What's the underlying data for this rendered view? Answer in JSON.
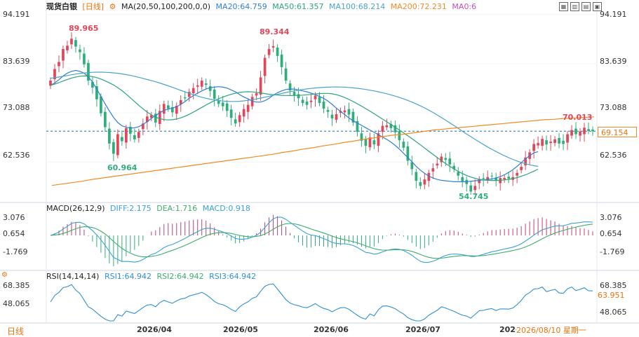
{
  "header": {
    "symbol": "现货白银",
    "period": "[日线]",
    "ma_label": "MA(20,50,100,200,0,0)",
    "ma20": "MA20:64.759",
    "ma50": "MA50:61.357",
    "ma100": "MA100:68.214",
    "ma200": "MA200:72.231",
    "ma0": "MA0:6"
  },
  "macd_header": {
    "label": "MACD(26,12,9)",
    "diff": "DIFF:2.175",
    "dea": "DEA:1.716",
    "macd": "MACD:0.918"
  },
  "rsi_header": {
    "label": "RSI(14,14,14)",
    "rsi1": "RSI1:64.942",
    "rsi2": "RSI2:64.942",
    "rsi3": "RSI3:64.942"
  },
  "price_axis": [
    "94.191",
    "83.639",
    "73.088",
    "62.536"
  ],
  "macd_axis": [
    "3.076",
    "0.654",
    "-1.769"
  ],
  "rsi_axis": [
    "68.385",
    "48.065"
  ],
  "current_price_label": "69.154",
  "current_rsi_label": "63.951",
  "x_axis_labels": [
    "2026/04",
    "2026/05",
    "2026/06",
    "2026/07",
    "2026"
  ],
  "date_label": "2026/08/10 星期一",
  "bottom_tab": "日线",
  "annotations": {
    "high1": "89.965",
    "low1": "60.964",
    "high2": "89.344",
    "low2": "54.745",
    "recent_high": "70.013"
  },
  "colors": {
    "up": "#e0475a",
    "down": "#2fae7a",
    "ma20": "#2f7fd4",
    "ma50": "#2aa37a",
    "ma100": "#4aa3c9",
    "ma200": "#f08a24",
    "diff": "#3aa0d8",
    "dea": "#3fae6a",
    "rsi": "#2f8fd4"
  },
  "chart_data": {
    "type": "candlestick",
    "title": "现货白银 [日线]",
    "price_range": [
      54.0,
      95.5
    ],
    "y_ticks": [
      94.191,
      83.639,
      73.088,
      62.536
    ],
    "last_close": 69.154,
    "closes": [
      80.0,
      82.5,
      84.0,
      86.8,
      87.5,
      89.0,
      87.3,
      86.1,
      83.5,
      80.0,
      78.5,
      76.0,
      73.0,
      70.0,
      66.5,
      64.3,
      68.5,
      67.0,
      69.8,
      68.6,
      67.4,
      69.0,
      70.8,
      72.3,
      72.6,
      71.0,
      73.5,
      75.0,
      74.0,
      73.2,
      74.6,
      75.8,
      76.2,
      77.6,
      78.4,
      79.0,
      80.0,
      79.1,
      77.8,
      76.1,
      75.0,
      74.5,
      73.5,
      72.0,
      70.8,
      72.6,
      73.9,
      74.8,
      76.5,
      77.3,
      80.7,
      84.9,
      86.8,
      87.4,
      85.3,
      82.9,
      80.0,
      77.9,
      76.8,
      76.2,
      75.2,
      74.8,
      75.7,
      76.8,
      75.2,
      74.0,
      73.3,
      71.9,
      72.8,
      73.5,
      73.6,
      72.7,
      71.0,
      69.0,
      67.1,
      66.0,
      67.8,
      66.3,
      68.7,
      70.3,
      70.4,
      69.8,
      68.9,
      67.2,
      65.6,
      62.8,
      61.0,
      58.5,
      57.4,
      58.8,
      60.2,
      61.2,
      62.2,
      63.7,
      63.0,
      62.0,
      61.0,
      59.6,
      58.4,
      57.8,
      56.2,
      57.4,
      58.8,
      58.9,
      59.3,
      59.5,
      58.6,
      59.1,
      59.1,
      59.0,
      59.3,
      60.2,
      61.5,
      63.5,
      64.6,
      66.4,
      66.6,
      67.5,
      66.3,
      66.9,
      67.4,
      66.5,
      66.4,
      68.5,
      69.4,
      68.5,
      69.1,
      69.9,
      69.2,
      69.154
    ],
    "ma20": [
      79.0,
      79.5,
      80.2,
      81.0,
      81.6,
      82.0,
      82.2,
      82.0,
      81.6,
      80.8,
      79.7,
      78.2,
      76.6,
      75.0,
      73.5,
      72.1,
      71.0,
      70.3,
      70.0,
      69.8,
      69.9,
      70.1,
      70.6,
      71.2,
      71.9,
      72.5,
      73.1,
      73.6,
      73.9,
      74.1,
      74.4,
      74.9,
      75.5,
      76.2,
      76.8,
      77.3,
      77.8,
      78.2,
      78.5,
      78.6,
      78.7,
      78.6,
      78.4,
      78.0,
      77.6,
      77.0,
      76.5,
      76.1,
      75.6,
      75.4,
      75.4,
      75.7,
      76.2,
      76.9,
      77.4,
      77.8,
      78.1,
      78.2,
      78.2,
      78.0,
      77.8,
      77.6,
      77.3,
      77.0,
      76.6,
      76.2,
      75.6,
      74.9,
      74.1,
      73.4,
      72.7,
      72.0,
      71.4,
      70.9,
      70.4,
      69.9,
      69.4,
      68.9,
      68.4,
      67.9,
      67.4,
      66.8,
      66.1,
      65.3,
      64.4,
      63.5,
      62.6,
      61.6,
      60.8,
      60.1,
      59.5,
      59.1,
      58.8,
      58.6,
      58.5,
      58.4,
      58.3,
      58.3,
      58.3,
      58.3,
      58.4,
      58.5,
      58.6,
      58.7,
      58.8,
      58.9,
      59.1,
      59.4,
      59.8,
      60.3,
      60.9,
      61.6,
      62.4,
      63.2,
      63.9,
      64.5,
      64.759
    ],
    "ma200": [
      57.5,
      57.8,
      58.1,
      58.4,
      58.8,
      59.1,
      59.4,
      59.7,
      60.0,
      60.3,
      60.6,
      60.9,
      61.2,
      61.5,
      61.8,
      62.1,
      62.4,
      62.7,
      63.0,
      63.3,
      63.6,
      63.9,
      64.2,
      64.6,
      64.9,
      65.3,
      65.6,
      66.0,
      66.3,
      66.7,
      67.0,
      67.4,
      67.7,
      68.0,
      68.3,
      68.5,
      68.8,
      69.1,
      69.4,
      69.6,
      69.8,
      70.0,
      70.2,
      70.4,
      70.6,
      70.8,
      71.0,
      71.2,
      71.4,
      71.6,
      71.7,
      71.9,
      72.0,
      72.1,
      72.231
    ]
  }
}
